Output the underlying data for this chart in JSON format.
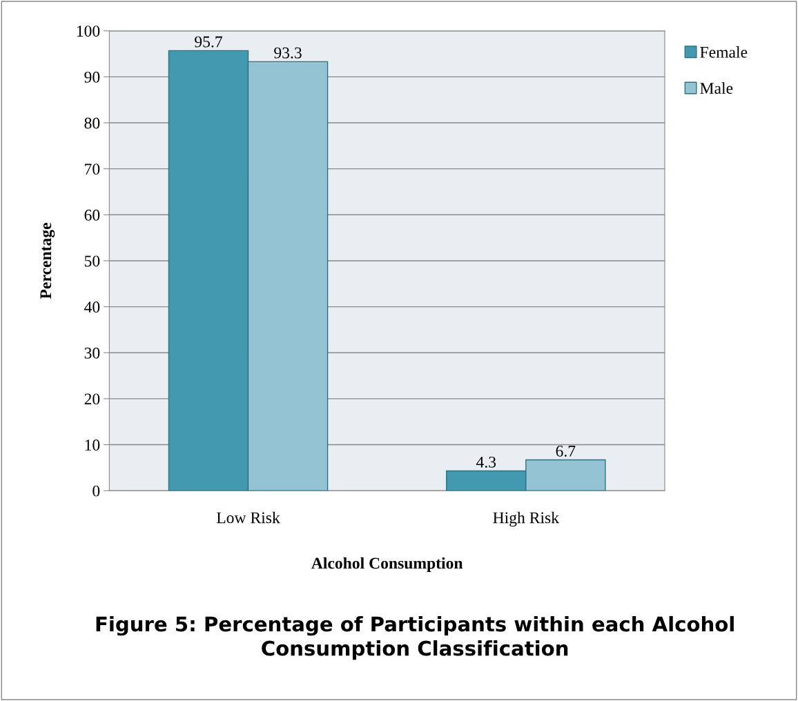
{
  "chart_data": {
    "type": "bar",
    "title": "Figure 5: Percentage of Participants within each Alcohol Consumption Classification",
    "xlabel": "Alcohol Consumption",
    "ylabel": "Percentage",
    "categories": [
      "Low Risk",
      "High Risk"
    ],
    "series": [
      {
        "name": "Female",
        "color": "#4399b0",
        "values": [
          95.7,
          4.3
        ]
      },
      {
        "name": "Male",
        "color": "#94c3d4",
        "values": [
          93.3,
          6.7
        ]
      }
    ],
    "ylim": [
      0,
      100
    ],
    "yticks": [
      0,
      10,
      20,
      30,
      40,
      50,
      60,
      70,
      80,
      90,
      100
    ],
    "grid": "y",
    "legend": "top right",
    "data_labels": true
  }
}
